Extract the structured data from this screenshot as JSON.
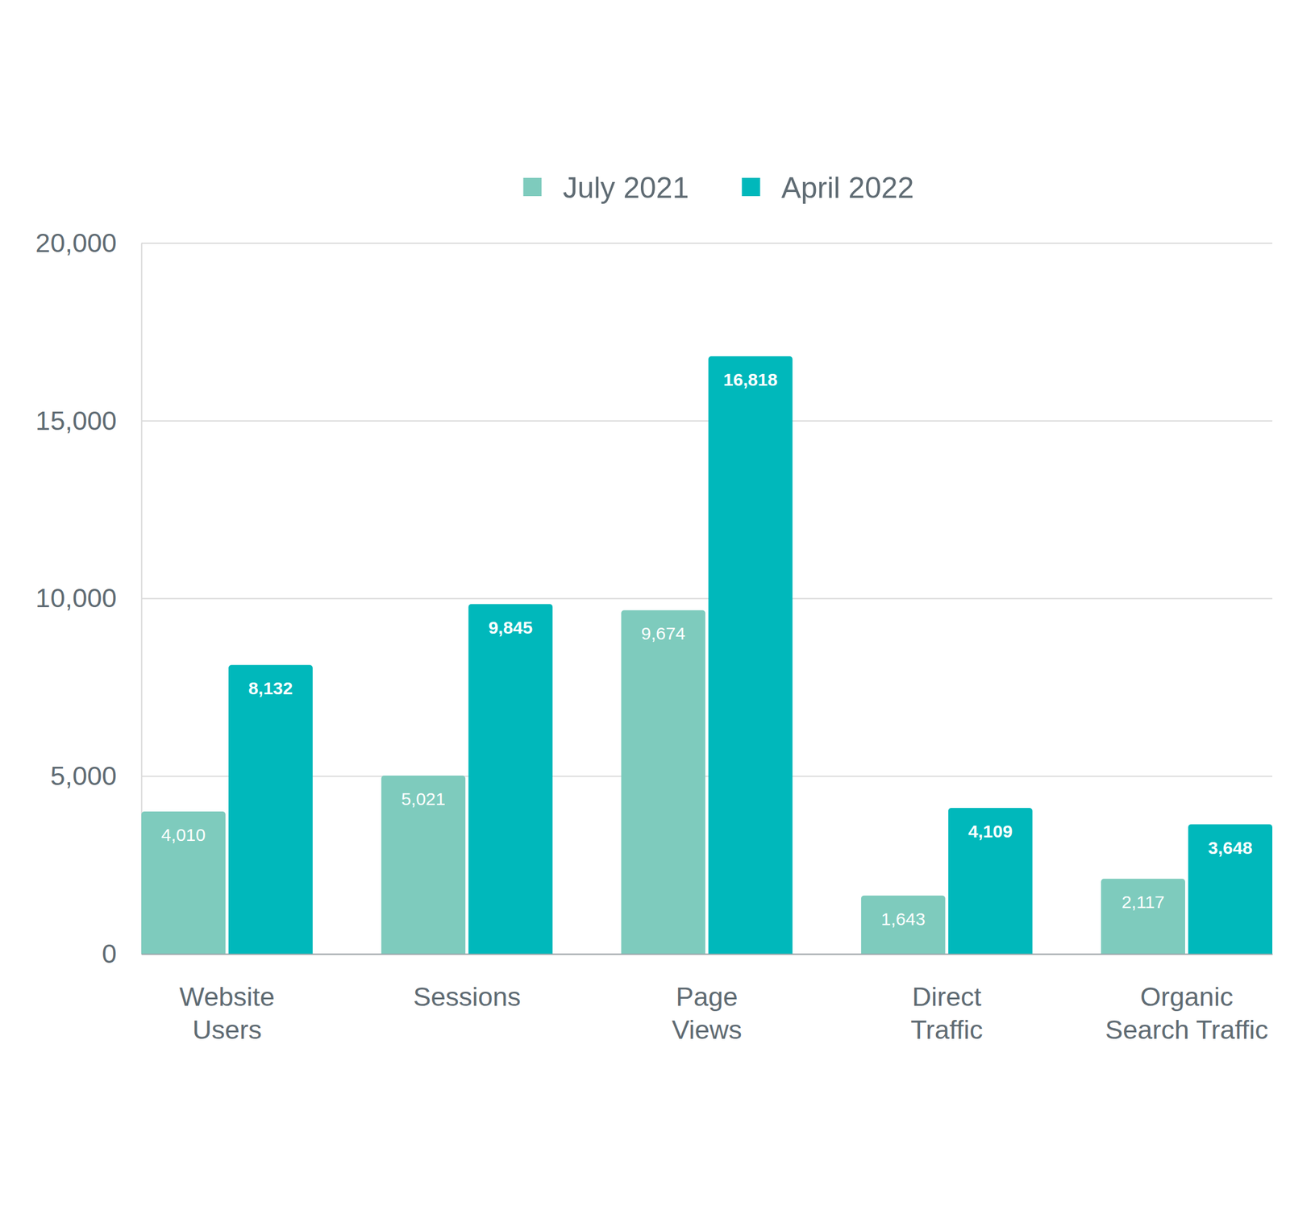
{
  "chart_data": {
    "type": "bar",
    "categories": [
      "Website Users",
      "Sessions",
      "Page Views",
      "Direct Traffic",
      "Organic Search Traffic"
    ],
    "series": [
      {
        "name": "July 2021",
        "color": "#7ecbbd",
        "values": [
          4010,
          5021,
          9674,
          1643,
          2117
        ],
        "value_labels": [
          "4,010",
          "5,021",
          "9,674",
          "1,643",
          "2,117"
        ]
      },
      {
        "name": "April 2022",
        "color": "#00b8bb",
        "values": [
          8132,
          9845,
          16818,
          4109,
          3648
        ],
        "value_labels": [
          "8,132",
          "9,845",
          "16,818",
          "4,109",
          "3,648"
        ]
      }
    ],
    "ylim": [
      0,
      20000
    ],
    "yticks": [
      0,
      {
        "value": 5000,
        "label": "5,000"
      },
      {
        "value": 10000,
        "label": "10,000"
      },
      {
        "value": 15000,
        "label": "15,000"
      },
      {
        "value": 20000,
        "label": "20,000"
      }
    ],
    "grid": true,
    "legend": "top",
    "data_labels": true
  }
}
